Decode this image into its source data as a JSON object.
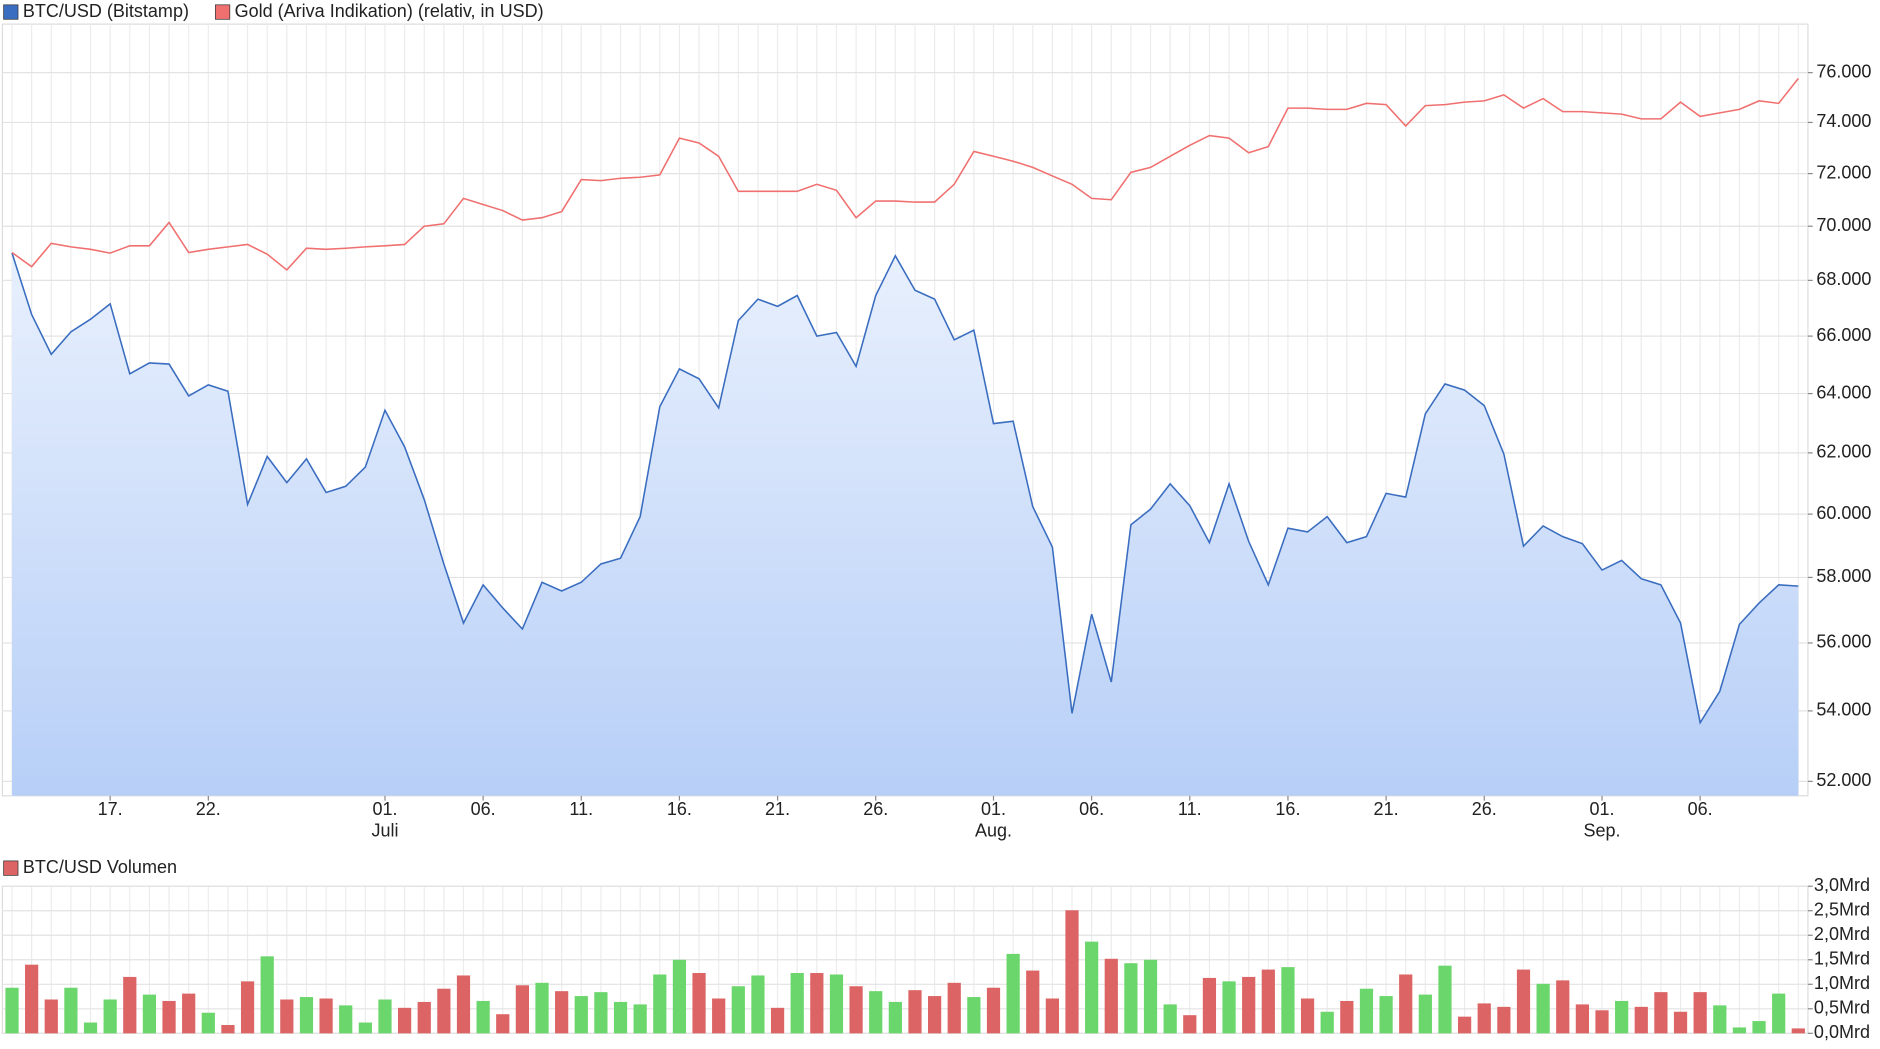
{
  "chart_data": [
    {
      "type": "line",
      "x": [
        "06-12",
        "06-13",
        "06-14",
        "06-15",
        "06-16",
        "06-17",
        "06-18",
        "06-19",
        "06-20",
        "06-21",
        "06-22",
        "06-23",
        "06-24",
        "06-25",
        "06-26",
        "06-27",
        "06-28",
        "06-29",
        "06-30",
        "07-01",
        "07-02",
        "07-03",
        "07-04",
        "07-05",
        "07-06",
        "07-07",
        "07-08",
        "07-09",
        "07-10",
        "07-11",
        "07-12",
        "07-13",
        "07-14",
        "07-15",
        "07-16",
        "07-17",
        "07-18",
        "07-19",
        "07-20",
        "07-21",
        "07-22",
        "07-23",
        "07-24",
        "07-25",
        "07-26",
        "07-27",
        "07-28",
        "07-29",
        "07-30",
        "07-31",
        "08-01",
        "08-02",
        "08-03",
        "08-04",
        "08-05",
        "08-06",
        "08-07",
        "08-08",
        "08-09",
        "08-10",
        "08-11",
        "08-12",
        "08-13",
        "08-14",
        "08-15",
        "08-16",
        "08-17",
        "08-18",
        "08-19",
        "08-20",
        "08-21",
        "08-22",
        "08-23",
        "08-24",
        "08-25",
        "08-26",
        "08-27",
        "08-28",
        "08-29",
        "08-30",
        "08-31",
        "09-01",
        "09-02",
        "09-03",
        "09-04",
        "09-05",
        "09-06",
        "09-07",
        "09-08",
        "09-09",
        "09-10",
        "09-11"
      ],
      "series": [
        {
          "name": "BTC/USD (Bitstamp)",
          "color": "#3a6dc0",
          "values": [
            69000,
            66770,
            65360,
            66150,
            66600,
            67150,
            64680,
            65060,
            65020,
            63920,
            64300,
            64080,
            60310,
            61880,
            61020,
            61800,
            60700,
            60900,
            61530,
            63430,
            62200,
            60470,
            58420,
            56600,
            57770,
            57060,
            56420,
            57850,
            57580,
            57850,
            58420,
            58600,
            59920,
            63550,
            64850,
            64510,
            63510,
            66550,
            67320,
            67060,
            67450,
            66000,
            66130,
            64940,
            67450,
            68900,
            67640,
            67320,
            65870,
            66210,
            62980,
            63060,
            60240,
            58950,
            53930,
            56870,
            54840,
            59660,
            60160,
            60980,
            60270,
            59090,
            60980,
            59130,
            57770,
            59550,
            59430,
            59920,
            59090,
            59280,
            60670,
            60550,
            63310,
            64330,
            64120,
            63590,
            61960,
            58980,
            59620,
            59280,
            59060,
            58230,
            58530,
            57960,
            57770,
            56600,
            53660,
            54570,
            56560,
            57210,
            57770,
            57730
          ]
        },
        {
          "name": "Gold (Ariva Indikation) (relativ, in USD)",
          "color": "#f07070",
          "values": [
            69020,
            68500,
            69360,
            69230,
            69140,
            69000,
            69270,
            69270,
            70140,
            69020,
            69140,
            69230,
            69320,
            68960,
            68380,
            69180,
            69140,
            69180,
            69230,
            69270,
            69320,
            70000,
            70090,
            71050,
            70820,
            70590,
            70230,
            70320,
            70550,
            71770,
            71730,
            71820,
            71860,
            71950,
            73380,
            73190,
            72670,
            71320,
            71320,
            71320,
            71320,
            71590,
            71360,
            70320,
            70950,
            70950,
            70910,
            70910,
            71590,
            72860,
            72670,
            72480,
            72240,
            71910,
            71590,
            71050,
            71000,
            72050,
            72240,
            72670,
            73100,
            73480,
            73380,
            72810,
            73050,
            74570,
            74570,
            74520,
            74520,
            74760,
            74710,
            73860,
            74670,
            74710,
            74810,
            74860,
            75100,
            74570,
            74950,
            74430,
            74430,
            74380,
            74330,
            74140,
            74140,
            74810,
            74240,
            74380,
            74520,
            74860,
            74760,
            75760
          ]
        }
      ],
      "ylim": [
        51600,
        78000
      ],
      "ylog": true,
      "yticks": [
        {
          "value": 52000,
          "label": "52.000"
        },
        {
          "value": 54000,
          "label": "54.000"
        },
        {
          "value": 56000,
          "label": "56.000"
        },
        {
          "value": 58000,
          "label": "58.000"
        },
        {
          "value": 60000,
          "label": "60.000"
        },
        {
          "value": 62000,
          "label": "62.000"
        },
        {
          "value": 64000,
          "label": "64.000"
        },
        {
          "value": 66000,
          "label": "66.000"
        },
        {
          "value": 68000,
          "label": "68.000"
        },
        {
          "value": 70000,
          "label": "70.000"
        },
        {
          "value": 72000,
          "label": "72.000"
        },
        {
          "value": 74000,
          "label": "74.000"
        },
        {
          "value": 76000,
          "label": "76.000"
        }
      ],
      "xticks": [
        {
          "value": "06-17",
          "label": "17."
        },
        {
          "value": "06-22",
          "label": "22."
        },
        {
          "value": "07-01",
          "label": "01."
        },
        {
          "value": "07-06",
          "label": "06."
        },
        {
          "value": "07-11",
          "label": "11."
        },
        {
          "value": "07-16",
          "label": "16."
        },
        {
          "value": "07-21",
          "label": "21."
        },
        {
          "value": "07-26",
          "label": "26."
        },
        {
          "value": "08-01",
          "label": "01."
        },
        {
          "value": "08-06",
          "label": "06."
        },
        {
          "value": "08-11",
          "label": "11."
        },
        {
          "value": "08-16",
          "label": "16."
        },
        {
          "value": "08-21",
          "label": "21."
        },
        {
          "value": "08-26",
          "label": "26."
        },
        {
          "value": "09-01",
          "label": "01."
        },
        {
          "value": "09-06",
          "label": "06."
        }
      ],
      "xtick_sublabels": [
        {
          "value": "07-01",
          "label": "Juli"
        },
        {
          "value": "08-01",
          "label": "Aug."
        },
        {
          "value": "09-01",
          "label": "Sep."
        }
      ],
      "grid": true
    },
    {
      "type": "bar",
      "x": [
        "06-12",
        "06-13",
        "06-14",
        "06-15",
        "06-16",
        "06-17",
        "06-18",
        "06-19",
        "06-20",
        "06-21",
        "06-22",
        "06-23",
        "06-24",
        "06-25",
        "06-26",
        "06-27",
        "06-28",
        "06-29",
        "06-30",
        "07-01",
        "07-02",
        "07-03",
        "07-04",
        "07-05",
        "07-06",
        "07-07",
        "07-08",
        "07-09",
        "07-10",
        "07-11",
        "07-12",
        "07-13",
        "07-14",
        "07-15",
        "07-16",
        "07-17",
        "07-18",
        "07-19",
        "07-20",
        "07-21",
        "07-22",
        "07-23",
        "07-24",
        "07-25",
        "07-26",
        "07-27",
        "07-28",
        "07-29",
        "07-30",
        "07-31",
        "08-01",
        "08-02",
        "08-03",
        "08-04",
        "08-05",
        "08-06",
        "08-07",
        "08-08",
        "08-09",
        "08-10",
        "08-11",
        "08-12",
        "08-13",
        "08-14",
        "08-15",
        "08-16",
        "08-17",
        "08-18",
        "08-19",
        "08-20",
        "08-21",
        "08-22",
        "08-23",
        "08-24",
        "08-25",
        "08-26",
        "08-27",
        "08-28",
        "08-29",
        "08-30",
        "08-31",
        "09-01",
        "09-02",
        "09-03",
        "09-04",
        "09-05",
        "09-06",
        "09-07",
        "09-08",
        "09-09",
        "09-10",
        "09-11"
      ],
      "series": [
        {
          "name": "BTC/USD Volumen",
          "color": "#dc6464",
          "values": [
            0.93,
            1.4,
            0.69,
            0.93,
            0.22,
            0.69,
            1.15,
            0.79,
            0.66,
            0.81,
            0.42,
            0.17,
            1.06,
            1.57,
            0.69,
            0.74,
            0.71,
            0.57,
            0.22,
            0.69,
            0.52,
            0.64,
            0.91,
            1.18,
            0.66,
            0.39,
            0.98,
            1.03,
            0.86,
            0.76,
            0.84,
            0.64,
            0.59,
            1.2,
            1.5,
            1.23,
            0.71,
            0.96,
            1.18,
            0.52,
            1.23,
            1.23,
            1.2,
            0.96,
            0.86,
            0.64,
            0.88,
            0.76,
            1.03,
            0.74,
            0.93,
            1.62,
            1.28,
            0.71,
            2.51,
            1.87,
            1.52,
            1.43,
            1.5,
            0.59,
            0.37,
            1.13,
            1.06,
            1.15,
            1.3,
            1.35,
            0.71,
            0.44,
            0.66,
            0.91,
            0.76,
            1.2,
            0.79,
            1.38,
            0.34,
            0.61,
            0.54,
            1.3,
            1.01,
            1.08,
            0.59,
            0.47,
            0.66,
            0.54,
            0.84,
            0.44,
            0.84,
            0.57,
            0.12,
            0.25,
            0.81,
            0.1
          ],
          "colors": [
            "#6bd66b",
            "#dc6464",
            "#dc6464",
            "#6bd66b",
            "#6bd66b",
            "#6bd66b",
            "#dc6464",
            "#6bd66b",
            "#dc6464",
            "#dc6464",
            "#6bd66b",
            "#dc6464",
            "#dc6464",
            "#6bd66b",
            "#dc6464",
            "#6bd66b",
            "#dc6464",
            "#6bd66b",
            "#6bd66b",
            "#6bd66b",
            "#dc6464",
            "#dc6464",
            "#dc6464",
            "#dc6464",
            "#6bd66b",
            "#dc6464",
            "#dc6464",
            "#6bd66b",
            "#dc6464",
            "#6bd66b",
            "#6bd66b",
            "#6bd66b",
            "#6bd66b",
            "#6bd66b",
            "#6bd66b",
            "#dc6464",
            "#dc6464",
            "#6bd66b",
            "#6bd66b",
            "#dc6464",
            "#6bd66b",
            "#dc6464",
            "#6bd66b",
            "#dc6464",
            "#6bd66b",
            "#6bd66b",
            "#dc6464",
            "#dc6464",
            "#dc6464",
            "#6bd66b",
            "#dc6464",
            "#6bd66b",
            "#dc6464",
            "#dc6464",
            "#dc6464",
            "#6bd66b",
            "#dc6464",
            "#6bd66b",
            "#6bd66b",
            "#6bd66b",
            "#dc6464",
            "#dc6464",
            "#6bd66b",
            "#dc6464",
            "#dc6464",
            "#6bd66b",
            "#dc6464",
            "#6bd66b",
            "#dc6464",
            "#6bd66b",
            "#6bd66b",
            "#dc6464",
            "#6bd66b",
            "#6bd66b",
            "#dc6464",
            "#dc6464",
            "#dc6464",
            "#dc6464",
            "#6bd66b",
            "#dc6464",
            "#dc6464",
            "#dc6464",
            "#6bd66b",
            "#dc6464",
            "#dc6464",
            "#dc6464",
            "#dc6464",
            "#6bd66b",
            "#6bd66b",
            "#6bd66b",
            "#6bd66b",
            "#dc6464"
          ]
        }
      ],
      "ylim": [
        0,
        3
      ],
      "yticks": [
        {
          "value": 0,
          "label": "0,0Mrd"
        },
        {
          "value": 0.5,
          "label": "0,5Mrd"
        },
        {
          "value": 1,
          "label": "1,0Mrd"
        },
        {
          "value": 1.5,
          "label": "1,5Mrd"
        },
        {
          "value": 2,
          "label": "2,0Mrd"
        },
        {
          "value": 2.5,
          "label": "2,5Mrd"
        },
        {
          "value": 3,
          "label": "3,0Mrd"
        }
      ],
      "grid": true
    }
  ]
}
